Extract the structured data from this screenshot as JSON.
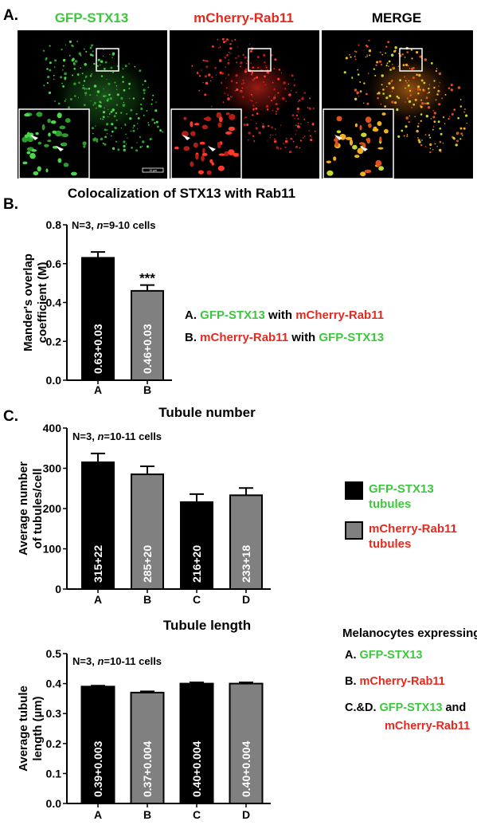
{
  "panel_letters": {
    "a": "A.",
    "b": "B.",
    "c": "C."
  },
  "micrographs": [
    {
      "title": "GFP-STX13",
      "color": "#3cc83c"
    },
    {
      "title": "mCherry-Rab11",
      "color": "#e8281e"
    },
    {
      "title": "MERGE",
      "color": "#000000"
    }
  ],
  "scale_bar_label": "10 µm",
  "colors": {
    "green": "#3cc83c",
    "red": "#e8281e",
    "black_bar": "#000000",
    "gray_bar": "#808080"
  },
  "chart_data": [
    {
      "type": "bar",
      "title": "Colocalization of STX13 with Rab11",
      "ylabel": [
        "Mander's overlap",
        "coefficient (M)"
      ],
      "annotation": "N=3, n=9-10 cells",
      "categories": [
        "A",
        "B"
      ],
      "values": [
        0.63,
        0.46
      ],
      "errors": [
        0.03,
        0.03
      ],
      "bar_labels": [
        "0.63+0.03",
        "0.46+0.03"
      ],
      "significance": [
        "",
        "***"
      ],
      "bar_colors": [
        "#000000",
        "#808080"
      ],
      "ylim": [
        0,
        0.8
      ],
      "yticks": [
        "0.0",
        "0.2",
        "0.4",
        "0.6",
        "0.8"
      ],
      "legend": [
        {
          "prefix": "A.",
          "parts": [
            {
              "text": "GFP-STX13",
              "color": "#3cc83c"
            },
            {
              "text": " with ",
              "color": "#000000"
            },
            {
              "text": "mCherry-Rab11",
              "color": "#e8281e"
            }
          ]
        },
        {
          "prefix": "B.",
          "parts": [
            {
              "text": "mCherry-Rab11",
              "color": "#e8281e"
            },
            {
              "text": " with ",
              "color": "#000000"
            },
            {
              "text": "GFP-STX13",
              "color": "#3cc83c"
            }
          ]
        }
      ]
    },
    {
      "type": "bar",
      "title": "Tubule number",
      "ylabel": [
        "Average number",
        "of tubules/cell"
      ],
      "annotation": "N=3, n=10-11 cells",
      "categories": [
        "A",
        "B",
        "C",
        "D"
      ],
      "values": [
        315,
        285,
        216,
        233
      ],
      "errors": [
        22,
        20,
        20,
        18
      ],
      "bar_labels": [
        "315+22",
        "285+20",
        "216+20",
        "233+18"
      ],
      "bar_colors": [
        "#000000",
        "#808080",
        "#000000",
        "#808080"
      ],
      "ylim": [
        0,
        400
      ],
      "yticks": [
        "0",
        "100",
        "200",
        "300",
        "400"
      ],
      "legend": [
        {
          "swatch": "#000000",
          "lines": [
            "GFP-STX13",
            "tubules"
          ],
          "color": "#3cc83c"
        },
        {
          "swatch": "#808080",
          "lines": [
            "mCherry-Rab11",
            "tubules"
          ],
          "color": "#e8281e"
        }
      ]
    },
    {
      "type": "bar",
      "title": "Tubule length",
      "ylabel": [
        "Average tubule",
        "length (µm)"
      ],
      "annotation": "N=3, n=10-11 cells",
      "categories": [
        "A",
        "B",
        "C",
        "D"
      ],
      "values": [
        0.39,
        0.37,
        0.4,
        0.4
      ],
      "errors": [
        0.003,
        0.004,
        0.004,
        0.004
      ],
      "bar_labels": [
        "0.39+0.003",
        "0.37+0.004",
        "0.40+0.004",
        "0.40+0.004"
      ],
      "bar_colors": [
        "#000000",
        "#808080",
        "#000000",
        "#808080"
      ],
      "ylim": [
        0,
        0.5
      ],
      "yticks": [
        "0.0",
        "0.1",
        "0.2",
        "0.3",
        "0.4",
        "0.5"
      ],
      "legend_title": "Melanocytes expressing:",
      "legend": [
        {
          "lines": [
            [
              {
                "text": "A. ",
                "color": "#000000"
              },
              {
                "text": "GFP-STX13",
                "color": "#3cc83c"
              }
            ]
          ]
        },
        {
          "lines": [
            [
              {
                "text": "B. ",
                "color": "#000000"
              },
              {
                "text": "mCherry-Rab11",
                "color": "#e8281e"
              }
            ]
          ]
        },
        {
          "lines": [
            [
              {
                "text": "C.&D. ",
                "color": "#000000"
              },
              {
                "text": "GFP-STX13",
                "color": "#3cc83c"
              },
              {
                "text": " and",
                "color": "#000000"
              }
            ],
            [
              {
                "text": "mCherry-Rab11",
                "color": "#e8281e"
              }
            ]
          ]
        }
      ]
    }
  ]
}
